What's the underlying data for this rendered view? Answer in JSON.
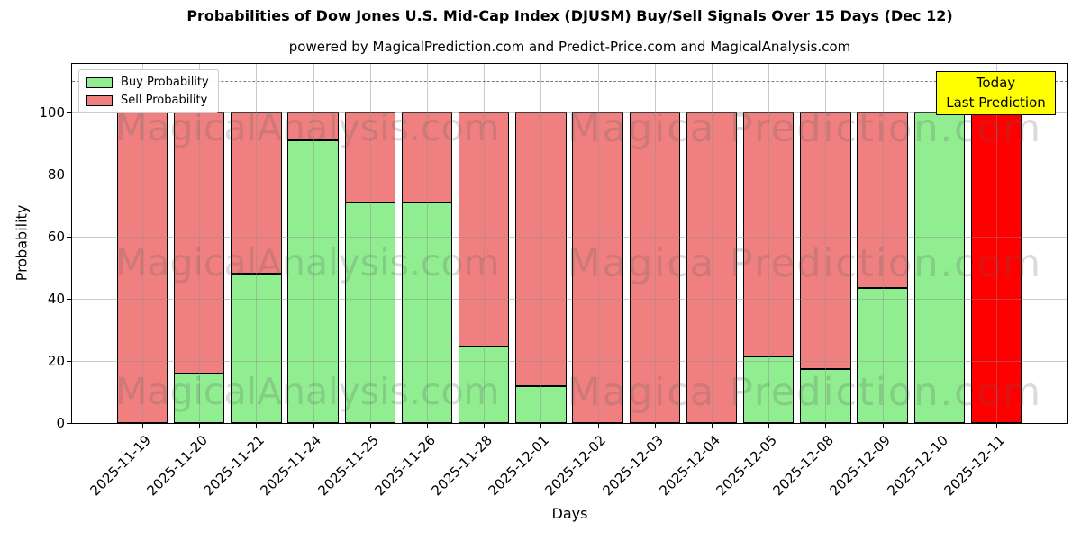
{
  "chart_data": {
    "type": "bar",
    "stacked": true,
    "title": "Probabilities of Dow Jones U.S. Mid-Cap Index (DJUSM) Buy/Sell Signals Over 15 Days (Dec 12)",
    "subtitle": "powered by MagicalPrediction.com and Predict-Price.com and MagicalAnalysis.com",
    "xlabel": "Days",
    "ylabel": "Probability",
    "categories": [
      "2025-11-19",
      "2025-11-20",
      "2025-11-21",
      "2025-11-24",
      "2025-11-25",
      "2025-11-26",
      "2025-11-28",
      "2025-12-01",
      "2025-12-02",
      "2025-12-03",
      "2025-12-04",
      "2025-12-05",
      "2025-12-08",
      "2025-12-09",
      "2025-12-10",
      "2025-12-11"
    ],
    "series": [
      {
        "name": "Buy Probability",
        "color": "#90EE90",
        "values": [
          0,
          16,
          48,
          91,
          71,
          71,
          24.5,
          12,
          0,
          0,
          0,
          21.5,
          17.5,
          43.5,
          100,
          0
        ]
      },
      {
        "name": "Sell Probability",
        "color": "#F08080",
        "today_color": "#FF0000",
        "values": [
          100,
          84,
          52,
          9,
          29,
          29,
          75.5,
          88,
          100,
          100,
          100,
          78.5,
          82.5,
          56.5,
          0,
          100
        ]
      }
    ],
    "yticks": [
      0,
      20,
      40,
      60,
      80,
      100
    ],
    "ylim": [
      0,
      115.65
    ],
    "dashed_line_y": 110,
    "grid": true,
    "legend_position": "upper left",
    "annotation": {
      "line1": "Today",
      "line2": "Last Prediction",
      "bg_color": "#FFFF00"
    },
    "watermark": {
      "left": "MagicalAnalysis.com",
      "right": "Magica Prediction.com"
    }
  }
}
